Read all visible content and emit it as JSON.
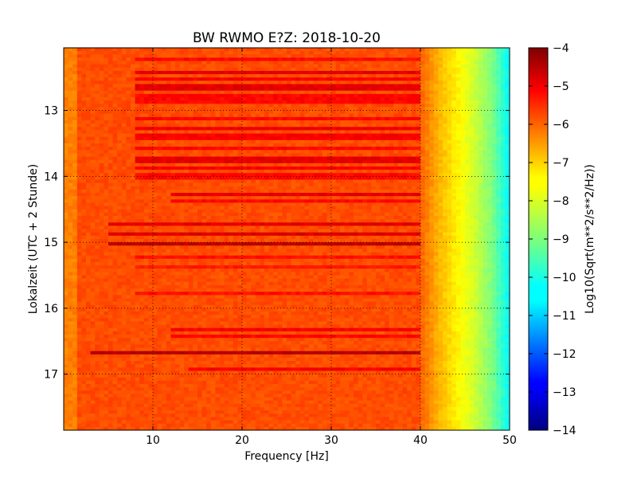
{
  "chart_data": [
    {
      "type": "heatmap",
      "title": "BW RWMO E?Z: 2018-10-20",
      "xlabel": "Frequency [Hz]",
      "ylabel": "Lokalzeit (UTC + 2 Stunde)",
      "xlim": [
        0,
        50
      ],
      "ylim": [
        12.05,
        17.85
      ],
      "y_inverted": true,
      "x_ticks": [
        10,
        20,
        30,
        40,
        50
      ],
      "x_tick_labels": [
        "10",
        "20",
        "30",
        "40",
        "50"
      ],
      "y_ticks": [
        13,
        14,
        15,
        16,
        17
      ],
      "y_tick_labels": [
        "13",
        "14",
        "15",
        "16",
        "17"
      ],
      "grid": "dotted",
      "colormap": "jet",
      "value_range": [
        -14,
        -4
      ],
      "baseline_level": -6.0,
      "high_frequency_rolloff": [
        {
          "freq": 40,
          "value": -6.2
        },
        {
          "freq": 42,
          "value": -7.0
        },
        {
          "freq": 44,
          "value": -7.6
        },
        {
          "freq": 46,
          "value": -8.2
        },
        {
          "freq": 48,
          "value": -9.0
        },
        {
          "freq": 50,
          "value": -10.3
        }
      ],
      "bands": [
        {
          "time_start": 12.2,
          "time_end": 12.25,
          "freq_start": 8,
          "freq_end": 50,
          "value": -5.3
        },
        {
          "time_start": 12.38,
          "time_end": 12.44,
          "freq_start": 8,
          "freq_end": 50,
          "value": -5.0
        },
        {
          "time_start": 12.52,
          "time_end": 12.57,
          "freq_start": 8,
          "freq_end": 44,
          "value": -5.2
        },
        {
          "time_start": 12.62,
          "time_end": 12.7,
          "freq_start": 8,
          "freq_end": 44,
          "value": -5.0
        },
        {
          "time_start": 12.75,
          "time_end": 12.9,
          "freq_start": 8,
          "freq_end": 44,
          "value": -5.3
        },
        {
          "time_start": 13.1,
          "time_end": 13.15,
          "freq_start": 8,
          "freq_end": 46,
          "value": -5.3
        },
        {
          "time_start": 13.25,
          "time_end": 13.32,
          "freq_start": 8,
          "freq_end": 44,
          "value": -5.1
        },
        {
          "time_start": 13.35,
          "time_end": 13.45,
          "freq_start": 8,
          "freq_end": 44,
          "value": -5.2
        },
        {
          "time_start": 13.55,
          "time_end": 13.62,
          "freq_start": 8,
          "freq_end": 44,
          "value": -5.3
        },
        {
          "time_start": 13.7,
          "time_end": 13.78,
          "freq_start": 8,
          "freq_end": 44,
          "value": -5.0
        },
        {
          "time_start": 13.85,
          "time_end": 13.92,
          "freq_start": 8,
          "freq_end": 44,
          "value": -5.2
        },
        {
          "time_start": 13.95,
          "time_end": 14.05,
          "freq_start": 8,
          "freq_end": 44,
          "value": -5.3
        },
        {
          "time_start": 14.25,
          "time_end": 14.32,
          "freq_start": 12,
          "freq_end": 42,
          "value": -5.0
        },
        {
          "time_start": 14.35,
          "time_end": 14.4,
          "freq_start": 12,
          "freq_end": 42,
          "value": -5.3
        },
        {
          "time_start": 14.72,
          "time_end": 14.77,
          "freq_start": 5,
          "freq_end": 50,
          "value": -5.0
        },
        {
          "time_start": 14.85,
          "time_end": 14.92,
          "freq_start": 5,
          "freq_end": 50,
          "value": -4.9
        },
        {
          "time_start": 15.0,
          "time_end": 15.06,
          "freq_start": 5,
          "freq_end": 50,
          "value": -4.6
        },
        {
          "time_start": 15.2,
          "time_end": 15.25,
          "freq_start": 8,
          "freq_end": 44,
          "value": -5.4
        },
        {
          "time_start": 15.35,
          "time_end": 15.4,
          "freq_start": 8,
          "freq_end": 44,
          "value": -5.5
        },
        {
          "time_start": 15.75,
          "time_end": 15.8,
          "freq_start": 8,
          "freq_end": 44,
          "value": -5.4
        },
        {
          "time_start": 16.32,
          "time_end": 16.37,
          "freq_start": 12,
          "freq_end": 50,
          "value": -5.2
        },
        {
          "time_start": 16.42,
          "time_end": 16.47,
          "freq_start": 12,
          "freq_end": 50,
          "value": -5.3
        },
        {
          "time_start": 16.67,
          "time_end": 16.72,
          "freq_start": 3,
          "freq_end": 50,
          "value": -4.5
        },
        {
          "time_start": 16.9,
          "time_end": 16.96,
          "freq_start": 14,
          "freq_end": 44,
          "value": -5.2
        }
      ],
      "colorbar": {
        "label": "Log10(Sqrt(m**2/s**2/Hz))",
        "ticks": [
          -4,
          -5,
          -6,
          -7,
          -8,
          -9,
          -10,
          -11,
          -12,
          -13,
          -14
        ],
        "tick_labels": [
          "−4",
          "−5",
          "−6",
          "−7",
          "−8",
          "−9",
          "−10",
          "−11",
          "−12",
          "−13",
          "−14"
        ]
      }
    }
  ]
}
